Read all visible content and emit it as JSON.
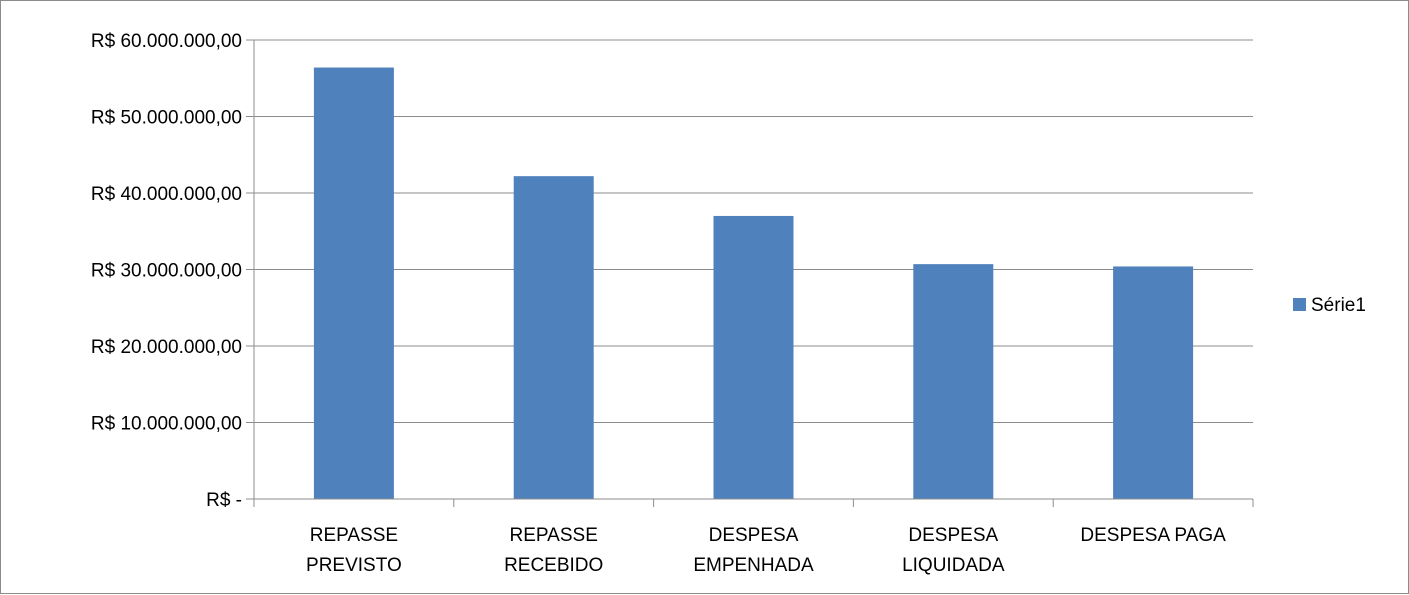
{
  "chart_data": {
    "type": "bar",
    "categories": [
      [
        "REPASSE",
        "PREVISTO"
      ],
      [
        "REPASSE",
        "RECEBIDO"
      ],
      [
        "DESPESA",
        "EMPENHADA"
      ],
      [
        "DESPESA",
        "LIQUIDADA"
      ],
      [
        "DESPESA PAGA"
      ]
    ],
    "series": [
      {
        "name": "Série1",
        "color": "#4F81BD",
        "values": [
          56400000,
          42200000,
          37000000,
          30700000,
          30400000
        ]
      }
    ],
    "ylim": [
      0,
      60000000
    ],
    "y_ticks": [
      {
        "value": 0,
        "label": "R$ -"
      },
      {
        "value": 10000000,
        "label": "R$ 10.000.000,00"
      },
      {
        "value": 20000000,
        "label": "R$ 20.000.000,00"
      },
      {
        "value": 30000000,
        "label": "R$ 30.000.000,00"
      },
      {
        "value": 40000000,
        "label": "R$ 40.000.000,00"
      },
      {
        "value": 50000000,
        "label": "R$ 50.000.000,00"
      },
      {
        "value": 60000000,
        "label": "R$ 60.000.000,00"
      }
    ],
    "grid": true,
    "legend_position": "right",
    "title": "",
    "xlabel": "",
    "ylabel": ""
  }
}
